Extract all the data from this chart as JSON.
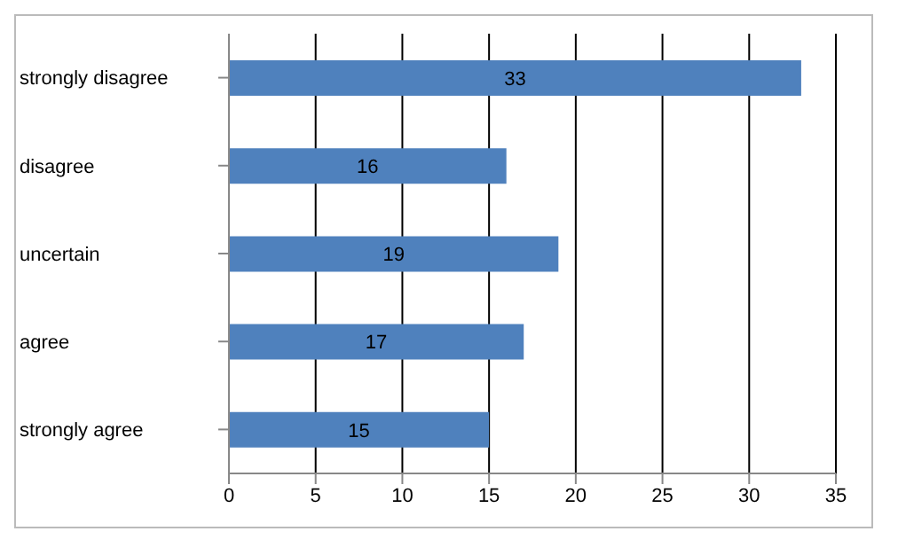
{
  "chart_data": {
    "type": "bar",
    "orientation": "horizontal",
    "categories": [
      "strongly disagree",
      "disagree",
      "uncertain",
      "agree",
      "strongly agree"
    ],
    "values": [
      33,
      16,
      19,
      17,
      15
    ],
    "color": "#4f81bd",
    "xlim": [
      0,
      35
    ],
    "xticks": [
      0,
      5,
      10,
      15,
      20,
      25,
      30,
      35
    ],
    "grid": "x",
    "data_labels": true
  }
}
